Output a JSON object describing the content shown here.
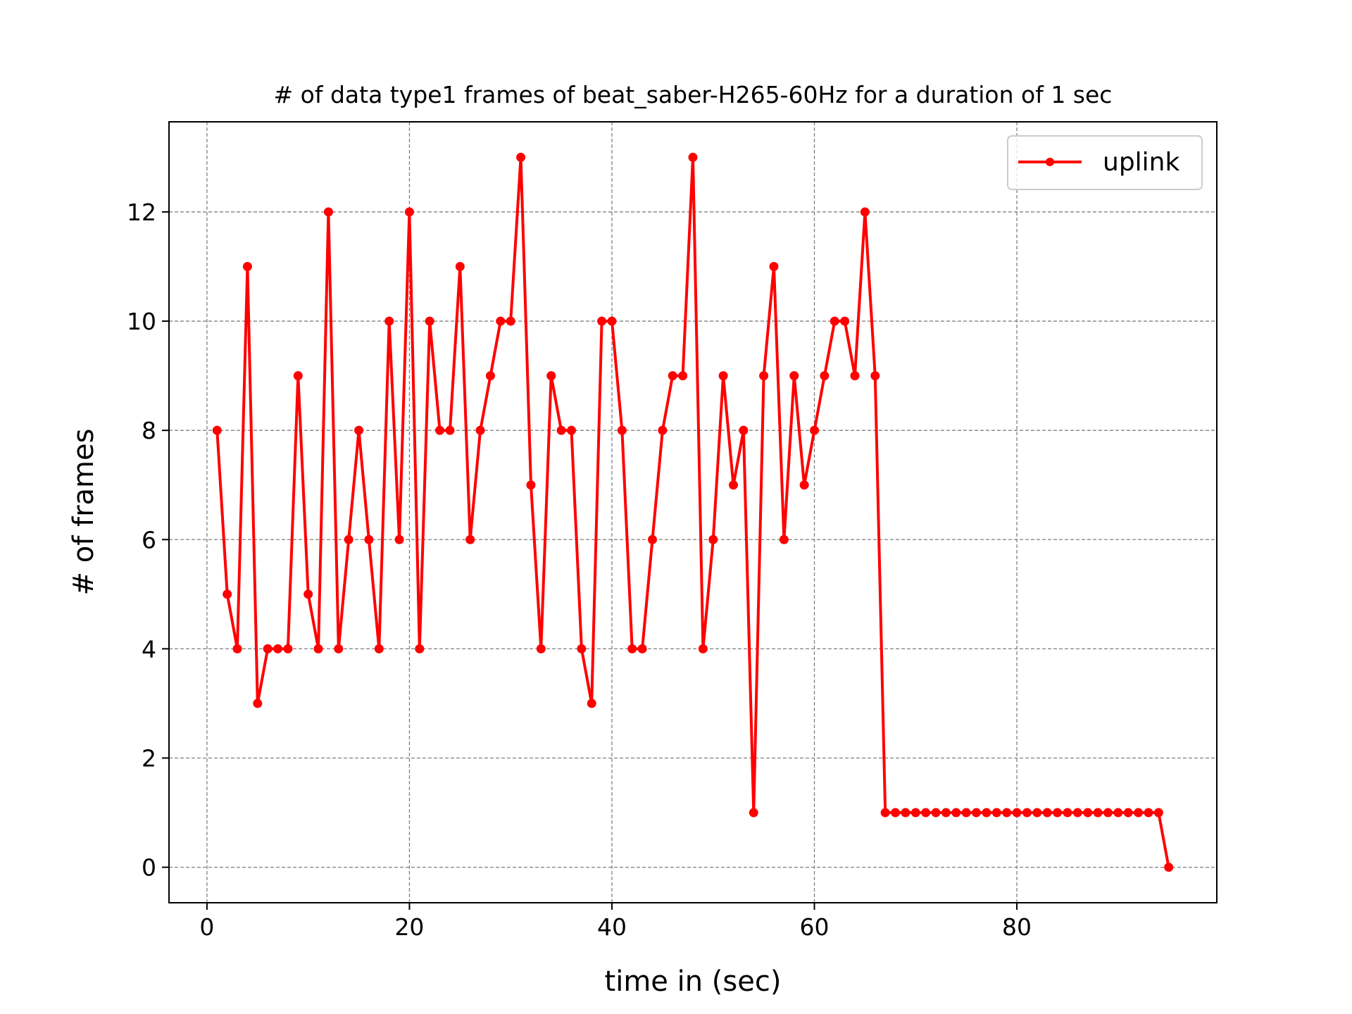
{
  "chart_data": {
    "type": "line",
    "title": "# of data type1 frames of beat_saber-H265-60Hz for a duration of 1 sec",
    "xlabel": "time in (sec)",
    "ylabel": "# of frames",
    "xlim": [
      -3.75,
      99.75
    ],
    "ylim": [
      -0.65,
      13.65
    ],
    "xticks": [
      0,
      20,
      40,
      60,
      80
    ],
    "yticks": [
      0,
      2,
      4,
      6,
      8,
      10,
      12
    ],
    "grid": true,
    "legend_position": "top-right",
    "series": [
      {
        "name": "uplink",
        "color": "#ff0000",
        "marker": "circle",
        "x": [
          1,
          2,
          3,
          4,
          5,
          6,
          7,
          8,
          9,
          10,
          11,
          12,
          13,
          14,
          15,
          16,
          17,
          18,
          19,
          20,
          21,
          22,
          23,
          24,
          25,
          26,
          27,
          28,
          29,
          30,
          31,
          32,
          33,
          34,
          35,
          36,
          37,
          38,
          39,
          40,
          41,
          42,
          43,
          44,
          45,
          46,
          47,
          48,
          49,
          50,
          51,
          52,
          53,
          54,
          55,
          56,
          57,
          58,
          59,
          60,
          61,
          62,
          63,
          64,
          65,
          66,
          67,
          68,
          69,
          70,
          71,
          72,
          73,
          74,
          75,
          76,
          77,
          78,
          79,
          80,
          81,
          82,
          83,
          84,
          85,
          86,
          87,
          88,
          89,
          90,
          91,
          92,
          93,
          94,
          95
        ],
        "y": [
          8,
          5,
          4,
          11,
          3,
          4,
          4,
          4,
          9,
          5,
          4,
          12,
          4,
          6,
          8,
          6,
          4,
          10,
          6,
          12,
          4,
          10,
          8,
          8,
          11,
          6,
          8,
          9,
          10,
          10,
          13,
          7,
          4,
          9,
          8,
          8,
          4,
          3,
          10,
          10,
          8,
          4,
          4,
          6,
          8,
          9,
          9,
          13,
          4,
          6,
          9,
          7,
          8,
          1,
          9,
          11,
          6,
          9,
          7,
          8,
          9,
          10,
          10,
          9,
          12,
          9,
          1,
          1,
          1,
          1,
          1,
          1,
          1,
          1,
          1,
          1,
          1,
          1,
          1,
          1,
          1,
          1,
          1,
          1,
          1,
          1,
          1,
          1,
          1,
          1,
          1,
          1,
          1,
          1,
          0
        ]
      }
    ]
  }
}
